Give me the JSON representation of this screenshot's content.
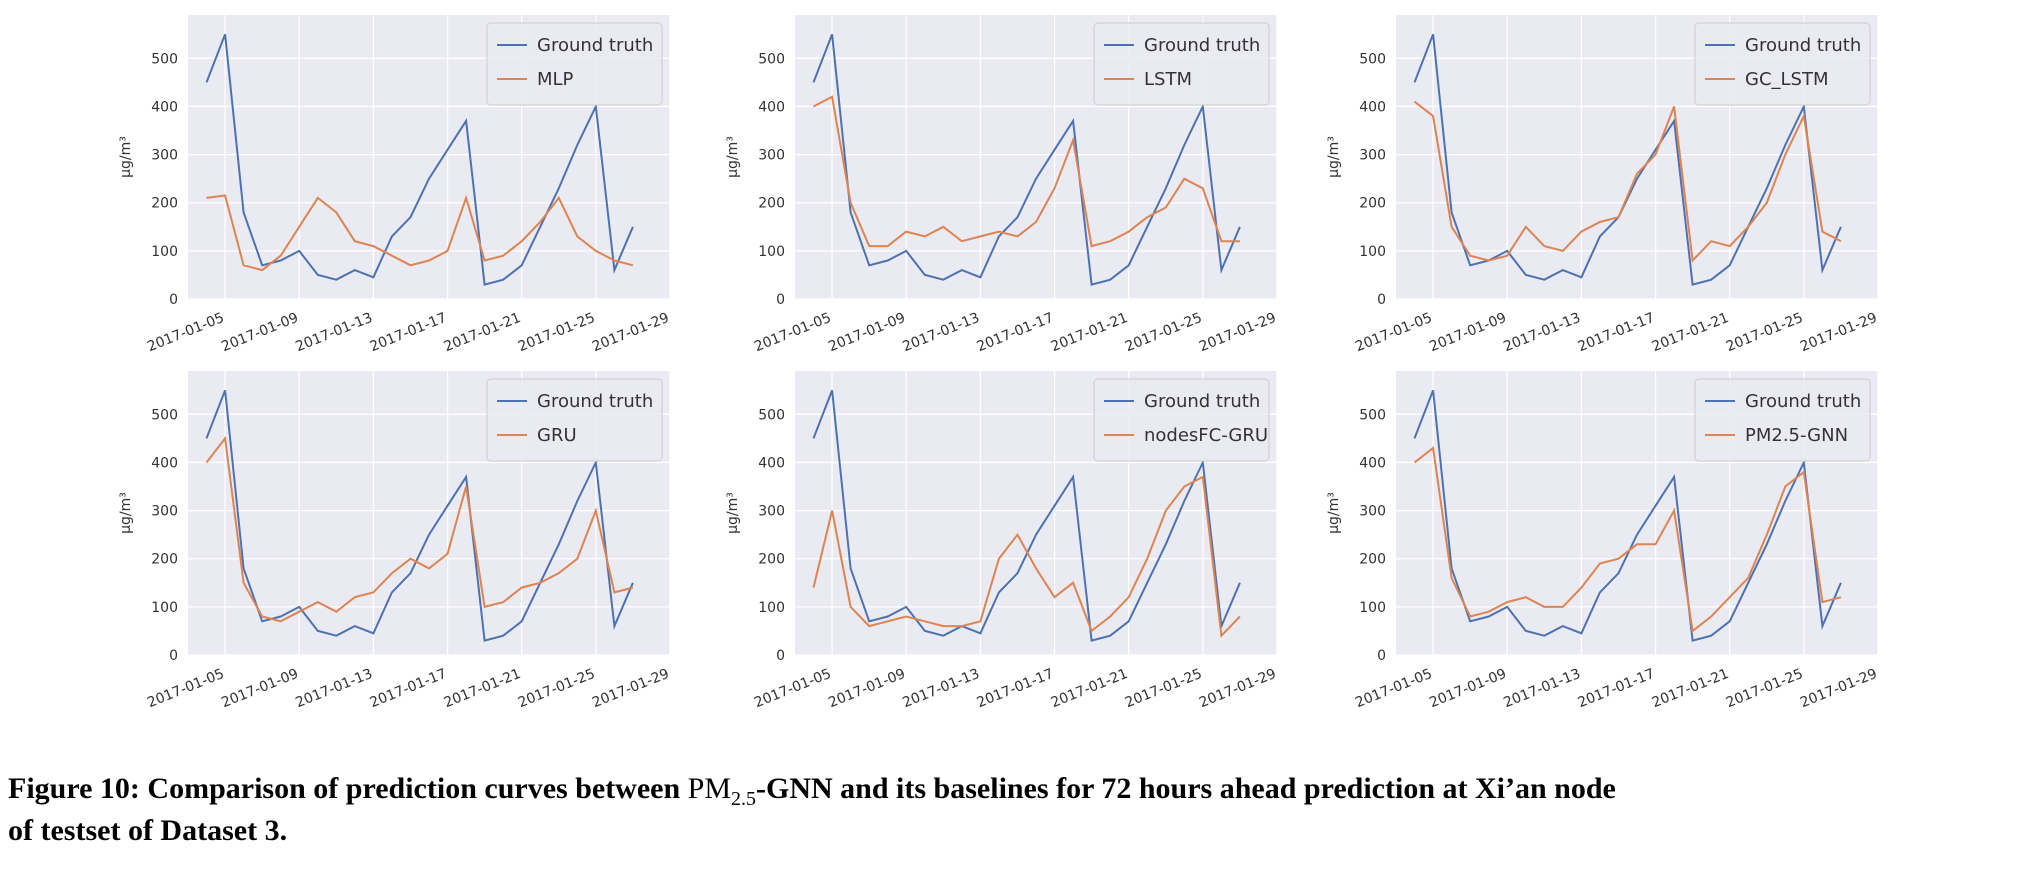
{
  "chart_data": [
    {
      "type": "line",
      "ylabel": "μg/m³",
      "legend": "upper right",
      "grid": true,
      "x": [
        "2017-01-04",
        "2017-01-05",
        "2017-01-06",
        "2017-01-07",
        "2017-01-08",
        "2017-01-09",
        "2017-01-10",
        "2017-01-11",
        "2017-01-12",
        "2017-01-13",
        "2017-01-14",
        "2017-01-15",
        "2017-01-16",
        "2017-01-17",
        "2017-01-18",
        "2017-01-19",
        "2017-01-20",
        "2017-01-21",
        "2017-01-22",
        "2017-01-23",
        "2017-01-24",
        "2017-01-25",
        "2017-01-26",
        "2017-01-27"
      ],
      "series": [
        {
          "name": "Ground truth",
          "color": "#4c72b0",
          "values": [
            450,
            550,
            180,
            70,
            80,
            100,
            50,
            40,
            60,
            45,
            130,
            170,
            250,
            310,
            370,
            30,
            40,
            70,
            150,
            230,
            320,
            400,
            60,
            150
          ]
        },
        {
          "name": "MLP",
          "color": "#dd8452",
          "values": [
            210,
            215,
            70,
            60,
            90,
            150,
            210,
            180,
            120,
            110,
            90,
            70,
            80,
            100,
            210,
            80,
            90,
            120,
            160,
            210,
            130,
            100,
            80,
            70
          ]
        }
      ],
      "xlim": [
        "2017-01-03",
        "2017-01-29"
      ],
      "ylim": [
        0,
        590
      ],
      "xticks": [
        "2017-01-05",
        "2017-01-09",
        "2017-01-13",
        "2017-01-17",
        "2017-01-21",
        "2017-01-25",
        "2017-01-29"
      ],
      "yticks": [
        0,
        100,
        200,
        300,
        400,
        500
      ]
    },
    {
      "type": "line",
      "ylabel": "μg/m³",
      "legend": "upper right",
      "grid": true,
      "x": [
        "2017-01-04",
        "2017-01-05",
        "2017-01-06",
        "2017-01-07",
        "2017-01-08",
        "2017-01-09",
        "2017-01-10",
        "2017-01-11",
        "2017-01-12",
        "2017-01-13",
        "2017-01-14",
        "2017-01-15",
        "2017-01-16",
        "2017-01-17",
        "2017-01-18",
        "2017-01-19",
        "2017-01-20",
        "2017-01-21",
        "2017-01-22",
        "2017-01-23",
        "2017-01-24",
        "2017-01-25",
        "2017-01-26",
        "2017-01-27"
      ],
      "series": [
        {
          "name": "Ground truth",
          "color": "#4c72b0",
          "values": [
            450,
            550,
            180,
            70,
            80,
            100,
            50,
            40,
            60,
            45,
            130,
            170,
            250,
            310,
            370,
            30,
            40,
            70,
            150,
            230,
            320,
            400,
            60,
            150
          ]
        },
        {
          "name": "LSTM",
          "color": "#dd8452",
          "values": [
            400,
            420,
            200,
            110,
            110,
            140,
            130,
            150,
            120,
            130,
            140,
            130,
            160,
            230,
            330,
            110,
            120,
            140,
            170,
            190,
            250,
            230,
            120,
            120
          ]
        }
      ],
      "xlim": [
        "2017-01-03",
        "2017-01-29"
      ],
      "ylim": [
        0,
        590
      ],
      "xticks": [
        "2017-01-05",
        "2017-01-09",
        "2017-01-13",
        "2017-01-17",
        "2017-01-21",
        "2017-01-25",
        "2017-01-29"
      ],
      "yticks": [
        0,
        100,
        200,
        300,
        400,
        500
      ]
    },
    {
      "type": "line",
      "ylabel": "μg/m³",
      "legend": "upper right",
      "grid": true,
      "x": [
        "2017-01-04",
        "2017-01-05",
        "2017-01-06",
        "2017-01-07",
        "2017-01-08",
        "2017-01-09",
        "2017-01-10",
        "2017-01-11",
        "2017-01-12",
        "2017-01-13",
        "2017-01-14",
        "2017-01-15",
        "2017-01-16",
        "2017-01-17",
        "2017-01-18",
        "2017-01-19",
        "2017-01-20",
        "2017-01-21",
        "2017-01-22",
        "2017-01-23",
        "2017-01-24",
        "2017-01-25",
        "2017-01-26",
        "2017-01-27"
      ],
      "series": [
        {
          "name": "Ground truth",
          "color": "#4c72b0",
          "values": [
            450,
            550,
            180,
            70,
            80,
            100,
            50,
            40,
            60,
            45,
            130,
            170,
            250,
            310,
            370,
            30,
            40,
            70,
            150,
            230,
            320,
            400,
            60,
            150
          ]
        },
        {
          "name": "GC_LSTM",
          "color": "#dd8452",
          "values": [
            410,
            380,
            150,
            90,
            80,
            90,
            150,
            110,
            100,
            140,
            160,
            170,
            260,
            300,
            400,
            80,
            120,
            110,
            150,
            200,
            300,
            380,
            140,
            120
          ]
        }
      ],
      "xlim": [
        "2017-01-03",
        "2017-01-29"
      ],
      "ylim": [
        0,
        590
      ],
      "xticks": [
        "2017-01-05",
        "2017-01-09",
        "2017-01-13",
        "2017-01-17",
        "2017-01-21",
        "2017-01-25",
        "2017-01-29"
      ],
      "yticks": [
        0,
        100,
        200,
        300,
        400,
        500
      ]
    },
    {
      "type": "line",
      "ylabel": "μg/m³",
      "legend": "upper right",
      "grid": true,
      "x": [
        "2017-01-04",
        "2017-01-05",
        "2017-01-06",
        "2017-01-07",
        "2017-01-08",
        "2017-01-09",
        "2017-01-10",
        "2017-01-11",
        "2017-01-12",
        "2017-01-13",
        "2017-01-14",
        "2017-01-15",
        "2017-01-16",
        "2017-01-17",
        "2017-01-18",
        "2017-01-19",
        "2017-01-20",
        "2017-01-21",
        "2017-01-22",
        "2017-01-23",
        "2017-01-24",
        "2017-01-25",
        "2017-01-26",
        "2017-01-27"
      ],
      "series": [
        {
          "name": "Ground truth",
          "color": "#4c72b0",
          "values": [
            450,
            550,
            180,
            70,
            80,
            100,
            50,
            40,
            60,
            45,
            130,
            170,
            250,
            310,
            370,
            30,
            40,
            70,
            150,
            230,
            320,
            400,
            60,
            150
          ]
        },
        {
          "name": "GRU",
          "color": "#dd8452",
          "values": [
            400,
            450,
            150,
            80,
            70,
            90,
            110,
            90,
            120,
            130,
            170,
            200,
            180,
            210,
            350,
            100,
            110,
            140,
            150,
            170,
            200,
            300,
            130,
            140
          ]
        }
      ],
      "xlim": [
        "2017-01-03",
        "2017-01-29"
      ],
      "ylim": [
        0,
        590
      ],
      "xticks": [
        "2017-01-05",
        "2017-01-09",
        "2017-01-13",
        "2017-01-17",
        "2017-01-21",
        "2017-01-25",
        "2017-01-29"
      ],
      "yticks": [
        0,
        100,
        200,
        300,
        400,
        500
      ]
    },
    {
      "type": "line",
      "ylabel": "μg/m³",
      "legend": "upper right",
      "grid": true,
      "x": [
        "2017-01-04",
        "2017-01-05",
        "2017-01-06",
        "2017-01-07",
        "2017-01-08",
        "2017-01-09",
        "2017-01-10",
        "2017-01-11",
        "2017-01-12",
        "2017-01-13",
        "2017-01-14",
        "2017-01-15",
        "2017-01-16",
        "2017-01-17",
        "2017-01-18",
        "2017-01-19",
        "2017-01-20",
        "2017-01-21",
        "2017-01-22",
        "2017-01-23",
        "2017-01-24",
        "2017-01-25",
        "2017-01-26",
        "2017-01-27"
      ],
      "series": [
        {
          "name": "Ground truth",
          "color": "#4c72b0",
          "values": [
            450,
            550,
            180,
            70,
            80,
            100,
            50,
            40,
            60,
            45,
            130,
            170,
            250,
            310,
            370,
            30,
            40,
            70,
            150,
            230,
            320,
            400,
            60,
            150
          ]
        },
        {
          "name": "nodesFC-GRU",
          "color": "#dd8452",
          "values": [
            140,
            300,
            100,
            60,
            70,
            80,
            70,
            60,
            60,
            70,
            200,
            250,
            180,
            120,
            150,
            50,
            80,
            120,
            200,
            300,
            350,
            370,
            40,
            80
          ]
        }
      ],
      "xlim": [
        "2017-01-03",
        "2017-01-29"
      ],
      "ylim": [
        0,
        590
      ],
      "xticks": [
        "2017-01-05",
        "2017-01-09",
        "2017-01-13",
        "2017-01-17",
        "2017-01-21",
        "2017-01-25",
        "2017-01-29"
      ],
      "yticks": [
        0,
        100,
        200,
        300,
        400,
        500
      ]
    },
    {
      "type": "line",
      "ylabel": "μg/m³",
      "legend": "upper right",
      "grid": true,
      "x": [
        "2017-01-04",
        "2017-01-05",
        "2017-01-06",
        "2017-01-07",
        "2017-01-08",
        "2017-01-09",
        "2017-01-10",
        "2017-01-11",
        "2017-01-12",
        "2017-01-13",
        "2017-01-14",
        "2017-01-15",
        "2017-01-16",
        "2017-01-17",
        "2017-01-18",
        "2017-01-19",
        "2017-01-20",
        "2017-01-21",
        "2017-01-22",
        "2017-01-23",
        "2017-01-24",
        "2017-01-25",
        "2017-01-26",
        "2017-01-27"
      ],
      "series": [
        {
          "name": "Ground truth",
          "color": "#4c72b0",
          "values": [
            450,
            550,
            180,
            70,
            80,
            100,
            50,
            40,
            60,
            45,
            130,
            170,
            250,
            310,
            370,
            30,
            40,
            70,
            150,
            230,
            320,
            400,
            60,
            150
          ]
        },
        {
          "name": "PM2.5-GNN",
          "color": "#dd8452",
          "values": [
            400,
            430,
            160,
            80,
            90,
            110,
            120,
            100,
            100,
            140,
            190,
            200,
            230,
            230,
            300,
            50,
            80,
            120,
            160,
            250,
            350,
            380,
            110,
            120
          ]
        }
      ],
      "xlim": [
        "2017-01-03",
        "2017-01-29"
      ],
      "ylim": [
        0,
        590
      ],
      "xticks": [
        "2017-01-05",
        "2017-01-09",
        "2017-01-13",
        "2017-01-17",
        "2017-01-21",
        "2017-01-25",
        "2017-01-29"
      ],
      "yticks": [
        0,
        100,
        200,
        300,
        400,
        500
      ]
    }
  ],
  "caption": {
    "prefix": "Figure 10: Comparison of prediction curves between ",
    "pm": "PM",
    "sub": "2.5",
    "rest": "-GNN and its baselines for 72 hours ahead prediction at Xi’an node",
    "line2": "of testset of Dataset 3."
  }
}
